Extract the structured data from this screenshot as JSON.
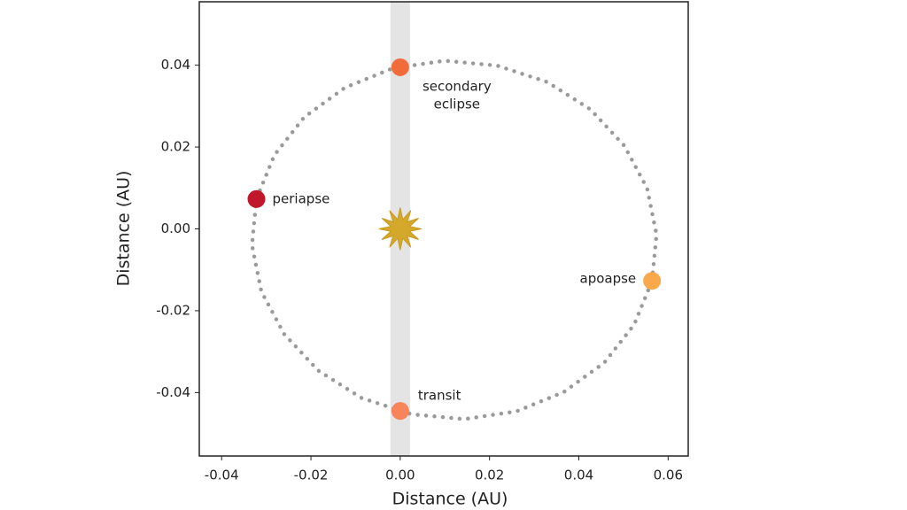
{
  "chart_data": {
    "type": "orbit",
    "xlabel": "Distance (AU)",
    "ylabel": "Distance (AU)",
    "xlim": [
      -0.045,
      0.0645
    ],
    "ylim": [
      -0.0555,
      0.0555
    ],
    "xticks": [
      {
        "value": -0.04,
        "label": "-0.04"
      },
      {
        "value": -0.02,
        "label": "-0.02"
      },
      {
        "value": 0,
        "label": "0.00"
      },
      {
        "value": 0.02,
        "label": "0.02"
      },
      {
        "value": 0.04,
        "label": "0.04"
      },
      {
        "value": 0.06,
        "label": "0.06"
      }
    ],
    "yticks": [
      {
        "value": 0.04,
        "label": "0.04"
      },
      {
        "value": 0.02,
        "label": "0.02"
      },
      {
        "value": 0,
        "label": "0.00"
      },
      {
        "value": -0.02,
        "label": "-0.02"
      },
      {
        "value": -0.04,
        "label": "-0.04"
      }
    ],
    "band": [
      -0.0022,
      0.0022
    ],
    "band_color": "#e4e4e4",
    "orbit": {
      "color": "#9a9a9a",
      "x": [
        0.0564,
        0.0574,
        0.0553,
        0.0502,
        0.0426,
        0.0329,
        0.0217,
        0.0099,
        -0.0018,
        -0.0124,
        -0.0215,
        -0.0282,
        -0.0322,
        -0.0332,
        -0.0311,
        -0.026,
        -0.0184,
        -0.0087,
        0.0025,
        0.0143,
        0.026,
        0.0366,
        0.0457,
        0.0524,
        0.0564
      ],
      "y": [
        -0.0127,
        -0.0014,
        0.0099,
        0.0203,
        0.0292,
        0.0359,
        0.0399,
        0.0411,
        0.0392,
        0.0345,
        0.0273,
        0.018,
        0.0073,
        -0.004,
        -0.0153,
        -0.0257,
        -0.0346,
        -0.0413,
        -0.0453,
        -0.0465,
        -0.0446,
        -0.0399,
        -0.0327,
        -0.0234,
        -0.0127
      ]
    },
    "star": {
      "x": 0,
      "y": 0,
      "color": "#d4a82a"
    },
    "points": [
      {
        "label": [
          "secondary",
          "eclipse"
        ],
        "x": 0,
        "y": 0.0395,
        "color": "#f26b3a"
      },
      {
        "label": [
          "periapse"
        ],
        "x": -0.0322,
        "y": 0.0073,
        "color": "#c0182a"
      },
      {
        "label": [
          "apoapse"
        ],
        "x": 0.0564,
        "y": -0.0127,
        "color": "#f9a94a"
      },
      {
        "label": [
          "transit"
        ],
        "x": 0,
        "y": -0.0445,
        "color": "#f7845a"
      }
    ]
  }
}
